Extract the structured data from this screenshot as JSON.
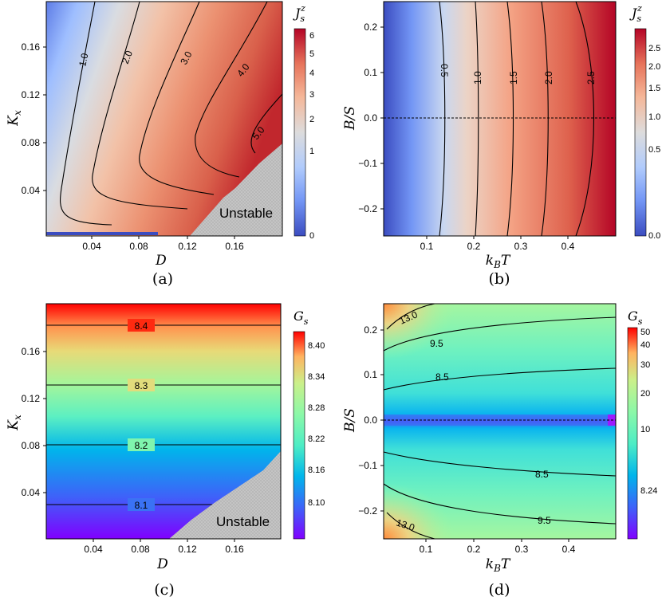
{
  "chart_data": [
    {
      "panel": "(a)",
      "type": "heatmap",
      "caption": "(a)",
      "xlabel": "D",
      "ylabel": "K_x",
      "xlim": [
        0,
        0.2
      ],
      "ylim": [
        0,
        0.2
      ],
      "xticks": [
        "0.04",
        "0.08",
        "0.12",
        "0.16"
      ],
      "yticks": [
        "0.04",
        "0.08",
        "0.12",
        "0.16"
      ],
      "colorbar_title": "J_s^z",
      "colorbar_range": [
        0,
        6.5
      ],
      "colorbar_ticks": [
        "0",
        "1",
        "2",
        "3",
        "4",
        "5",
        "6"
      ],
      "colormap": "coolwarm",
      "contours": [
        {
          "label": "1.0",
          "value": 1.0
        },
        {
          "label": "2.0",
          "value": 2.0
        },
        {
          "label": "3.0",
          "value": 3.0
        },
        {
          "label": "4.0",
          "value": 4.0
        },
        {
          "label": "5.0",
          "value": 5.0
        }
      ],
      "annotation": "Unstable"
    },
    {
      "panel": "(b)",
      "type": "heatmap",
      "caption": "(b)",
      "xlabel": "k_B T",
      "ylabel": "B/S",
      "xlim": [
        0,
        0.5
      ],
      "ylim": [
        -0.26,
        0.26
      ],
      "xticks": [
        "0.1",
        "0.2",
        "0.3",
        "0.4"
      ],
      "yticks": [
        "0.2",
        "0.1",
        "0.0",
        "−0.1",
        "−0.2"
      ],
      "colorbar_title": "J_s^z",
      "colorbar_range": [
        0,
        2.9
      ],
      "colorbar_ticks": [
        "0.0",
        "0.5",
        "1.0",
        "1.5",
        "2.0",
        "2.5"
      ],
      "colormap": "coolwarm",
      "contours": [
        {
          "label": "0.5",
          "value": 0.5
        },
        {
          "label": "1.0",
          "value": 1.0
        },
        {
          "label": "1.5",
          "value": 1.5
        },
        {
          "label": "2.0",
          "value": 2.0
        },
        {
          "label": "2.5",
          "value": 2.5
        }
      ]
    },
    {
      "panel": "(c)",
      "type": "heatmap",
      "caption": "(c)",
      "xlabel": "D",
      "ylabel": "K_x",
      "xlim": [
        0,
        0.2
      ],
      "ylim": [
        0,
        0.2
      ],
      "xticks": [
        "0.04",
        "0.08",
        "0.12",
        "0.16"
      ],
      "yticks": [
        "0.04",
        "0.08",
        "0.12",
        "0.16"
      ],
      "colorbar_title": "G_s",
      "colorbar_range": [
        8.04,
        8.44
      ],
      "colorbar_ticks": [
        "8.10",
        "8.16",
        "8.22",
        "8.28",
        "8.34",
        "8.40"
      ],
      "colormap": "rainbow",
      "contours": [
        {
          "label": "8.1",
          "value": 8.1
        },
        {
          "label": "8.2",
          "value": 8.2
        },
        {
          "label": "8.3",
          "value": 8.3
        },
        {
          "label": "8.4",
          "value": 8.4
        }
      ],
      "annotation": "Unstable"
    },
    {
      "panel": "(d)",
      "type": "heatmap",
      "caption": "(d)",
      "xlabel": "k_B T",
      "ylabel": "B/S",
      "xlim": [
        0,
        0.5
      ],
      "ylim": [
        -0.26,
        0.26
      ],
      "xticks": [
        "0.1",
        "0.2",
        "0.3",
        "0.4"
      ],
      "yticks": [
        "0.2",
        "0.1",
        "0.0",
        "−0.1",
        "−0.2"
      ],
      "colorbar_title": "G_s",
      "colorbar_range": [
        8.0,
        50
      ],
      "colorbar_ticks": [
        "8.24",
        "10",
        "20",
        "30",
        "40",
        "50"
      ],
      "colormap": "rainbow (log)",
      "contours": [
        {
          "label": "8.5",
          "value": 8.5
        },
        {
          "label": "9.5",
          "value": 9.5
        },
        {
          "label": "13.0",
          "value": 13.0
        }
      ]
    }
  ],
  "labels": {
    "a": {
      "caption": "(a)",
      "xlabel": "D",
      "ylabel_main": "K",
      "ylabel_sub": "x",
      "cb_main": "J",
      "cb_sub": "s",
      "cb_sup": "z",
      "unstable": "Unstable",
      "xt": [
        "0.04",
        "0.08",
        "0.12",
        "0.16"
      ],
      "yt": [
        "0.04",
        "0.08",
        "0.12",
        "0.16"
      ],
      "cbt": [
        "0",
        "1",
        "2",
        "3",
        "4",
        "5",
        "6"
      ],
      "cl": [
        "1.0",
        "2.0",
        "3.0",
        "4.0",
        "5.0"
      ]
    },
    "b": {
      "caption": "(b)",
      "xlabel_main": "k",
      "xlabel_sub": "B",
      "xlabel_tail": "T",
      "ylabel": "B/S",
      "cb_main": "J",
      "cb_sub": "s",
      "cb_sup": "z",
      "xt": [
        "0.1",
        "0.2",
        "0.3",
        "0.4"
      ],
      "yt": [
        "0.2",
        "0.1",
        "0.0",
        "−0.1",
        "−0.2"
      ],
      "cbt": [
        "0.0",
        "0.5",
        "1.0",
        "1.5",
        "2.0",
        "2.5"
      ],
      "cl": [
        "0.5",
        "1.0",
        "1.5",
        "2.0",
        "2.5"
      ]
    },
    "c": {
      "caption": "(c)",
      "xlabel": "D",
      "ylabel_main": "K",
      "ylabel_sub": "x",
      "cb_main": "G",
      "cb_sub": "s",
      "unstable": "Unstable",
      "xt": [
        "0.04",
        "0.08",
        "0.12",
        "0.16"
      ],
      "yt": [
        "0.04",
        "0.08",
        "0.12",
        "0.16"
      ],
      "cbt": [
        "8.10",
        "8.16",
        "8.22",
        "8.28",
        "8.34",
        "8.40"
      ],
      "cl": [
        "8.1",
        "8.2",
        "8.3",
        "8.4"
      ]
    },
    "d": {
      "caption": "(d)",
      "xlabel_main": "k",
      "xlabel_sub": "B",
      "xlabel_tail": "T",
      "ylabel": "B/S",
      "cb_main": "G",
      "cb_sub": "s",
      "xt": [
        "0.1",
        "0.2",
        "0.3",
        "0.4"
      ],
      "yt": [
        "0.2",
        "0.1",
        "0.0",
        "−0.1",
        "−0.2"
      ],
      "cbt": [
        "8.24",
        "10",
        "20",
        "30",
        "40",
        "50"
      ],
      "cl": [
        "13.0",
        "9.5",
        "8.5",
        "8.5",
        "9.5",
        "13.0"
      ]
    }
  },
  "colors": {
    "coolwarm": [
      "#3b4cc0",
      "#7396f5",
      "#b0cbfc",
      "#dddcdc",
      "#f5b799",
      "#e7745b",
      "#b40426"
    ],
    "rainbow": [
      "#8000ff",
      "#3e62f9",
      "#00b5eb",
      "#4dedc5",
      "#8bf8a8",
      "#caf08a",
      "#ffb360",
      "#ff0000"
    ],
    "unstable": "#c0c0c0",
    "contour": "#000000"
  }
}
